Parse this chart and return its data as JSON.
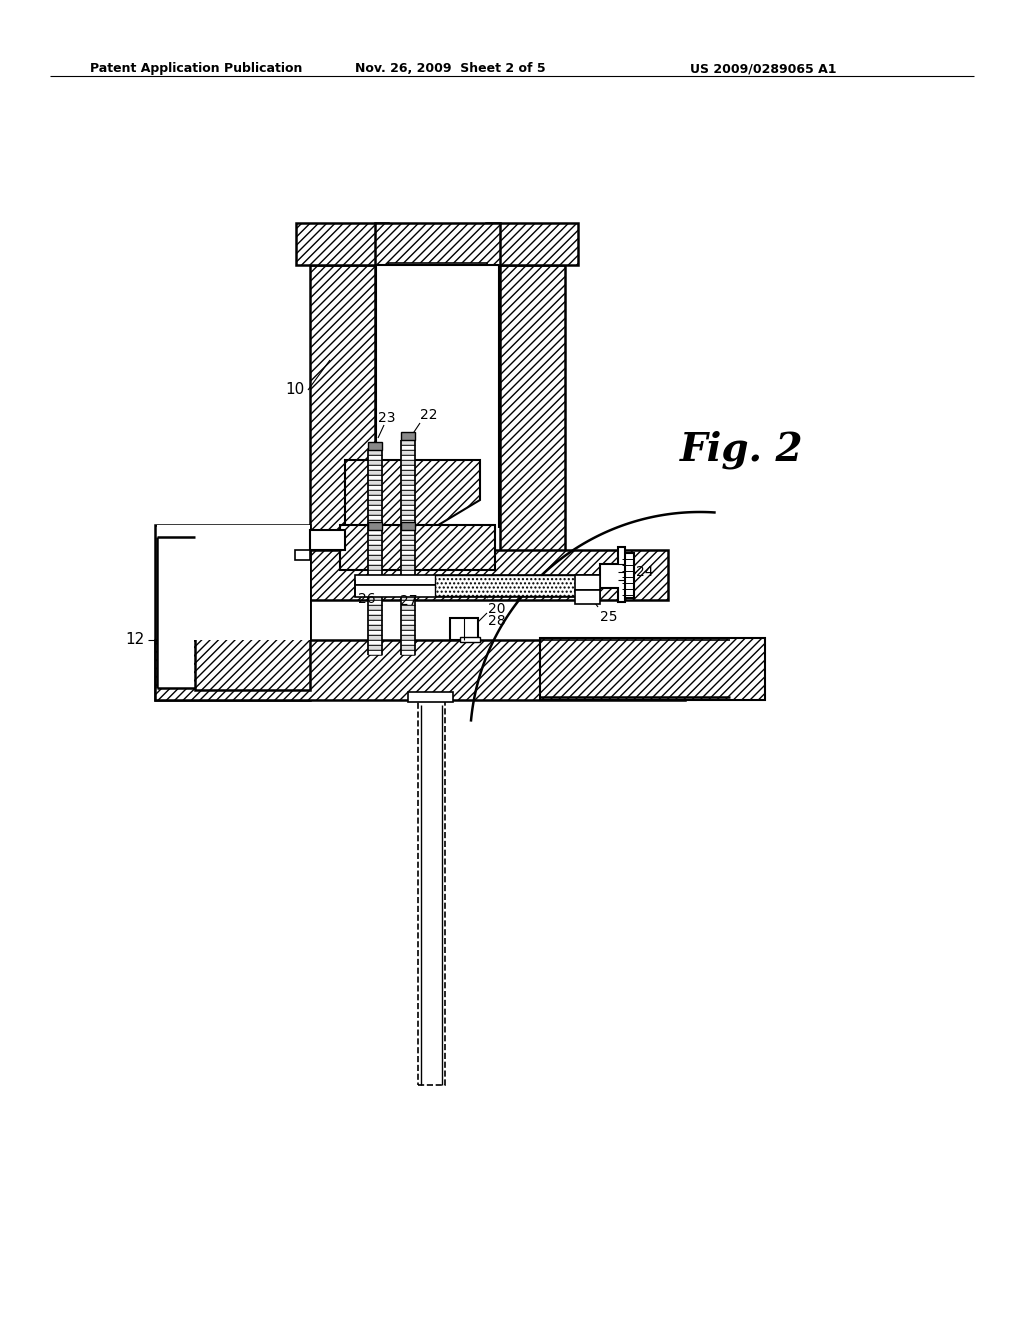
{
  "header_left": "Patent Application Publication",
  "header_mid": "Nov. 26, 2009  Sheet 2 of 5",
  "header_right": "US 2009/0289065 A1",
  "fig_label": "Fig. 2",
  "bg_color": "#ffffff"
}
